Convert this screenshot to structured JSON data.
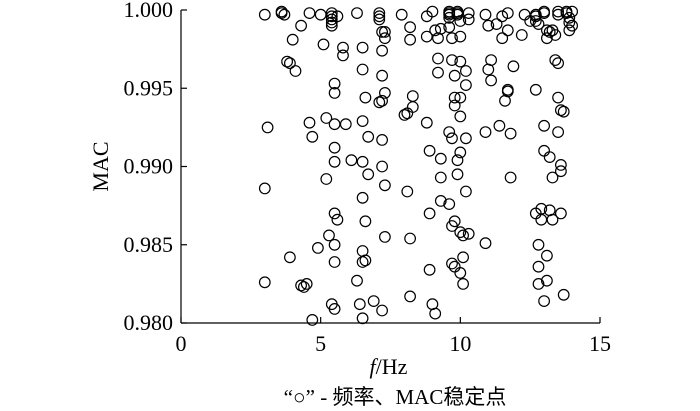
{
  "chart_data": {
    "type": "scatter",
    "xlabel_italic": "f",
    "xlabel_unit": "/Hz",
    "ylabel": "MAC",
    "caption": "“○” - 频率、MAC稳定点",
    "xlim": [
      0,
      15
    ],
    "ylim": [
      0.98,
      1.0
    ],
    "x_ticks": [
      0,
      5,
      10,
      15
    ],
    "x_tick_labels": [
      "0",
      "5",
      "10",
      "15"
    ],
    "y_ticks": [
      0.98,
      0.985,
      0.99,
      0.995,
      1.0
    ],
    "y_tick_labels": [
      "0.980",
      "0.985",
      "0.990",
      "0.995",
      "1.000"
    ],
    "marker": "open-circle",
    "marker_color": "#000000",
    "series": [
      {
        "points": [
          [
            3.0,
            0.9997
          ],
          [
            3.0,
            0.9886
          ],
          [
            3.1,
            0.9925
          ],
          [
            3.0,
            0.9826
          ],
          [
            3.6,
            0.9998
          ],
          [
            3.6,
            0.9999
          ],
          [
            3.7,
            0.9997
          ],
          [
            3.8,
            0.9967
          ],
          [
            3.9,
            0.9966
          ],
          [
            4.0,
            0.9981
          ],
          [
            4.1,
            0.9961
          ],
          [
            3.9,
            0.9842
          ],
          [
            4.3,
            0.999
          ],
          [
            4.3,
            0.9824
          ],
          [
            4.4,
            0.9823
          ],
          [
            4.6,
            0.9998
          ],
          [
            4.6,
            0.9928
          ],
          [
            4.7,
            0.9919
          ],
          [
            4.9,
            0.9848
          ],
          [
            4.7,
            0.9802
          ],
          [
            4.5,
            0.9825
          ],
          [
            5.0,
            0.9997
          ],
          [
            5.1,
            0.9978
          ],
          [
            5.2,
            0.9931
          ],
          [
            5.2,
            0.9892
          ],
          [
            5.3,
            0.9856
          ],
          [
            5.4,
            0.9998
          ],
          [
            5.4,
            0.9996
          ],
          [
            5.4,
            0.9994
          ],
          [
            5.4,
            0.9992
          ],
          [
            5.4,
            0.999
          ],
          [
            5.5,
            0.9953
          ],
          [
            5.5,
            0.9947
          ],
          [
            5.5,
            0.9927
          ],
          [
            5.5,
            0.9912
          ],
          [
            5.5,
            0.9903
          ],
          [
            5.5,
            0.987
          ],
          [
            5.5,
            0.9839
          ],
          [
            5.4,
            0.9812
          ],
          [
            5.5,
            0.9809
          ],
          [
            5.5,
            0.985
          ],
          [
            5.6,
            0.9866
          ],
          [
            5.6,
            0.9996
          ],
          [
            5.8,
            0.9976
          ],
          [
            5.8,
            0.9971
          ],
          [
            5.9,
            0.9927
          ],
          [
            6.1,
            0.9904
          ],
          [
            6.3,
            0.9998
          ],
          [
            6.5,
            0.9976
          ],
          [
            6.5,
            0.9962
          ],
          [
            6.6,
            0.9944
          ],
          [
            6.5,
            0.9929
          ],
          [
            6.5,
            0.9903
          ],
          [
            6.5,
            0.988
          ],
          [
            6.5,
            0.9846
          ],
          [
            6.5,
            0.9839
          ],
          [
            6.5,
            0.9803
          ],
          [
            6.6,
            0.984
          ],
          [
            6.6,
            0.9865
          ],
          [
            6.7,
            0.9919
          ],
          [
            6.7,
            0.9895
          ],
          [
            6.4,
            0.9812
          ],
          [
            6.3,
            0.9827
          ],
          [
            6.9,
            0.9814
          ],
          [
            7.1,
            0.9998
          ],
          [
            7.1,
            0.9996
          ],
          [
            7.1,
            0.9994
          ],
          [
            7.2,
            0.9986
          ],
          [
            7.2,
            0.9974
          ],
          [
            7.2,
            0.9958
          ],
          [
            7.3,
            0.9947
          ],
          [
            7.1,
            0.9941
          ],
          [
            7.2,
            0.9942
          ],
          [
            7.2,
            0.9917
          ],
          [
            7.2,
            0.99
          ],
          [
            7.3,
            0.9888
          ],
          [
            7.3,
            0.9855
          ],
          [
            7.2,
            0.9808
          ],
          [
            7.3,
            0.9982
          ],
          [
            7.3,
            0.9986
          ],
          [
            7.9,
            0.9997
          ],
          [
            8.0,
            0.9933
          ],
          [
            8.1,
            0.9884
          ],
          [
            8.2,
            0.9989
          ],
          [
            8.1,
            0.9934
          ],
          [
            8.2,
            0.9981
          ],
          [
            8.3,
            0.9945
          ],
          [
            8.3,
            0.9938
          ],
          [
            8.2,
            0.9854
          ],
          [
            8.2,
            0.9817
          ],
          [
            8.8,
            0.9996
          ],
          [
            8.8,
            0.9983
          ],
          [
            8.8,
            0.9928
          ],
          [
            8.9,
            0.991
          ],
          [
            8.9,
            0.987
          ],
          [
            8.9,
            0.9834
          ],
          [
            9.0,
            0.9999
          ],
          [
            9.1,
            0.9987
          ],
          [
            9.0,
            0.9812
          ],
          [
            9.1,
            0.9806
          ],
          [
            9.2,
            0.9982
          ],
          [
            9.2,
            0.9969
          ],
          [
            9.2,
            0.996
          ],
          [
            9.3,
            0.9988
          ],
          [
            9.3,
            0.9905
          ],
          [
            9.3,
            0.9893
          ],
          [
            9.3,
            0.9878
          ],
          [
            9.6,
            0.9999
          ],
          [
            9.6,
            0.9998
          ],
          [
            9.6,
            0.9997
          ],
          [
            9.6,
            0.9995
          ],
          [
            9.6,
            0.9989
          ],
          [
            9.7,
            0.9982
          ],
          [
            9.7,
            0.9968
          ],
          [
            9.8,
            0.9958
          ],
          [
            9.8,
            0.9944
          ],
          [
            9.8,
            0.9939
          ],
          [
            9.6,
            0.9922
          ],
          [
            9.7,
            0.9918
          ],
          [
            9.6,
            0.9876
          ],
          [
            9.7,
            0.9862
          ],
          [
            9.7,
            0.9838
          ],
          [
            9.8,
            0.9836
          ],
          [
            9.8,
            0.9865
          ],
          [
            9.9,
            0.9999
          ],
          [
            9.9,
            0.9998
          ],
          [
            9.9,
            0.9997
          ],
          [
            10.0,
            0.9993
          ],
          [
            10.0,
            0.9983
          ],
          [
            10.0,
            0.9967
          ],
          [
            10.0,
            0.9944
          ],
          [
            10.0,
            0.9932
          ],
          [
            9.9,
            0.9904
          ],
          [
            9.9,
            0.9895
          ],
          [
            10.0,
            0.9909
          ],
          [
            10.0,
            0.9858
          ],
          [
            10.1,
            0.9825
          ],
          [
            10.0,
            0.9832
          ],
          [
            10.1,
            0.9842
          ],
          [
            10.3,
            0.9994
          ],
          [
            10.3,
            0.9998
          ],
          [
            10.2,
            0.9961
          ],
          [
            10.2,
            0.9952
          ],
          [
            10.2,
            0.9918
          ],
          [
            10.2,
            0.9884
          ],
          [
            10.3,
            0.9857
          ],
          [
            10.1,
            0.9856
          ],
          [
            10.9,
            0.9997
          ],
          [
            10.9,
            0.9851
          ],
          [
            11.0,
            0.999
          ],
          [
            11.1,
            0.9968
          ],
          [
            11.0,
            0.9962
          ],
          [
            10.9,
            0.9922
          ],
          [
            11.1,
            0.9955
          ],
          [
            11.3,
            0.9991
          ],
          [
            11.5,
            0.9996
          ],
          [
            11.4,
            0.9926
          ],
          [
            11.5,
            0.9982
          ],
          [
            11.7,
            0.9998
          ],
          [
            11.7,
            0.9987
          ],
          [
            11.6,
            0.9942
          ],
          [
            11.7,
            0.9949
          ],
          [
            11.7,
            0.9948
          ],
          [
            11.8,
            0.9921
          ],
          [
            11.8,
            0.9893
          ],
          [
            11.9,
            0.9964
          ],
          [
            12.3,
            0.9997
          ],
          [
            12.2,
            0.9984
          ],
          [
            12.5,
            0.9993
          ],
          [
            12.7,
            0.9997
          ],
          [
            12.7,
            0.9996
          ],
          [
            12.7,
            0.9993
          ],
          [
            12.8,
            0.9991
          ],
          [
            12.7,
            0.9949
          ],
          [
            12.7,
            0.987
          ],
          [
            12.8,
            0.985
          ],
          [
            12.8,
            0.9836
          ],
          [
            12.8,
            0.9825
          ],
          [
            12.9,
            0.9873
          ],
          [
            12.9,
            0.9866
          ],
          [
            13.0,
            0.9926
          ],
          [
            13.0,
            0.991
          ],
          [
            13.0,
            0.9999
          ],
          [
            13.0,
            0.9998
          ],
          [
            13.1,
            0.9987
          ],
          [
            13.2,
            0.9986
          ],
          [
            13.1,
            0.9982
          ],
          [
            13.2,
            0.9906
          ],
          [
            13.1,
            0.9843
          ],
          [
            13.1,
            0.9827
          ],
          [
            13.0,
            0.9814
          ],
          [
            13.2,
            0.9872
          ],
          [
            13.3,
            0.9893
          ],
          [
            13.3,
            0.9866
          ],
          [
            13.3,
            0.9987
          ],
          [
            13.4,
            0.9984
          ],
          [
            13.4,
            0.9968
          ],
          [
            13.5,
            0.9999
          ],
          [
            13.5,
            0.9997
          ],
          [
            13.5,
            0.9966
          ],
          [
            13.5,
            0.9944
          ],
          [
            13.5,
            0.9922
          ],
          [
            13.6,
            0.9936
          ],
          [
            13.6,
            0.9901
          ],
          [
            13.6,
            0.9897
          ],
          [
            13.6,
            0.987
          ],
          [
            13.7,
            0.9818
          ],
          [
            13.7,
            0.9935
          ],
          [
            13.8,
            0.9999
          ],
          [
            13.8,
            0.9998
          ],
          [
            13.9,
            0.9995
          ],
          [
            13.9,
            0.9992
          ],
          [
            13.9,
            0.9987
          ],
          [
            14.0,
            0.9999
          ],
          [
            14.0,
            0.999
          ]
        ]
      }
    ]
  }
}
